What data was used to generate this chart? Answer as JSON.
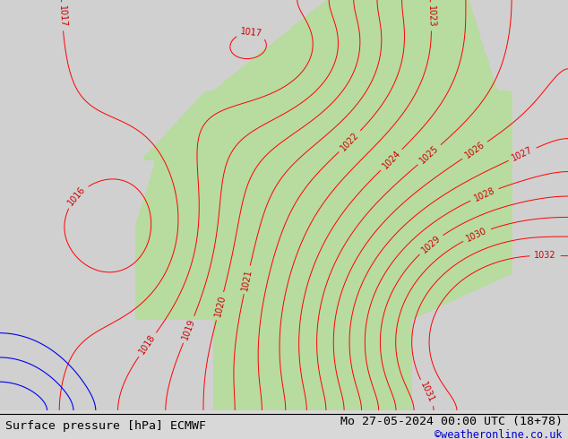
{
  "title_left": "Surface pressure [hPa] ECMWF",
  "title_right": "Mo 27-05-2024 00:00 UTC (18 + 78)",
  "title_right_plain": "Mo 27-05-2024 00:00 UTC (18+78)",
  "copyright": "©weatheronline.co.uk",
  "bg_color": "#d8d8d8",
  "land_color": "#b8dba0",
  "sea_color": "#c8d8c8",
  "contour_red": "#ff0000",
  "contour_black": "#000000",
  "contour_blue": "#0000ee",
  "label_red": "#cc0000",
  "font_size_bottom": 9.5,
  "font_size_label": 7
}
